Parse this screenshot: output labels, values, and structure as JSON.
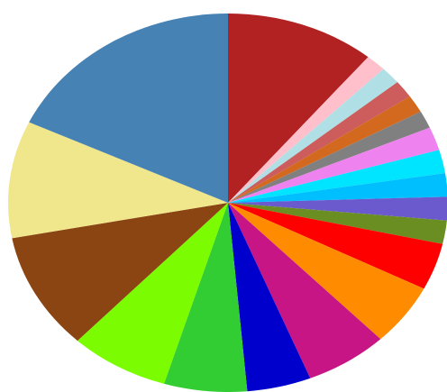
{
  "chart_data": {
    "type": "pie",
    "values": [
      11,
      1.5,
      1.5,
      1.5,
      1.5,
      1.5,
      2,
      2,
      2,
      2,
      2,
      4,
      5.3,
      6.1,
      4.7,
      6.1,
      7.3,
      10,
      10,
      18
    ],
    "colors": [
      "#b22222",
      "#ffc0cb",
      "#b0e0e6",
      "#cd5c5c",
      "#d2691e",
      "#808080",
      "#ee82ee",
      "#00e5ff",
      "#00bfff",
      "#6a5acd",
      "#6b8e23",
      "#ff0000",
      "#ff8c00",
      "#c71585",
      "#0000cd",
      "#32cd32",
      "#7cfc00",
      "#8b4513",
      "#f0e68c",
      "#4682b4"
    ]
  }
}
